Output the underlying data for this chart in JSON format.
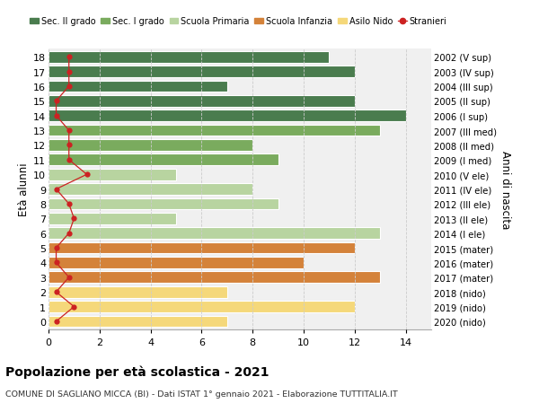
{
  "ages": [
    18,
    17,
    16,
    15,
    14,
    13,
    12,
    11,
    10,
    9,
    8,
    7,
    6,
    5,
    4,
    3,
    2,
    1,
    0
  ],
  "years": [
    "2002 (V sup)",
    "2003 (IV sup)",
    "2004 (III sup)",
    "2005 (II sup)",
    "2006 (I sup)",
    "2007 (III med)",
    "2008 (II med)",
    "2009 (I med)",
    "2010 (V ele)",
    "2011 (IV ele)",
    "2012 (III ele)",
    "2013 (II ele)",
    "2014 (I ele)",
    "2015 (mater)",
    "2016 (mater)",
    "2017 (mater)",
    "2018 (nido)",
    "2019 (nido)",
    "2020 (nido)"
  ],
  "bar_values": [
    11,
    12,
    7,
    12,
    14,
    13,
    8,
    9,
    5,
    8,
    9,
    5,
    13,
    12,
    10,
    13,
    7,
    12,
    7
  ],
  "bar_colors": [
    "#4a7c4e",
    "#4a7c4e",
    "#4a7c4e",
    "#4a7c4e",
    "#4a7c4e",
    "#7aab5e",
    "#7aab5e",
    "#7aab5e",
    "#b8d4a0",
    "#b8d4a0",
    "#b8d4a0",
    "#b8d4a0",
    "#b8d4a0",
    "#d4823a",
    "#d4823a",
    "#d4823a",
    "#f5d87a",
    "#f5d87a",
    "#f5d87a"
  ],
  "stranieri_x": [
    0.8,
    0.8,
    0.8,
    0.3,
    0.3,
    0.8,
    0.8,
    0.8,
    1.5,
    0.3,
    0.8,
    1.0,
    0.8,
    0.3,
    0.3,
    0.8,
    0.3,
    1.0,
    0.3
  ],
  "title": "Popolazione per età scolastica - 2021",
  "subtitle": "COMUNE DI SAGLIANO MICCA (BI) - Dati ISTAT 1° gennaio 2021 - Elaborazione TUTTITALIA.IT",
  "ylabel_left": "Età alunni",
  "ylabel_right": "Anni di nascita",
  "xlim": [
    0,
    15
  ],
  "color_sec2": "#4a7c4e",
  "color_sec1": "#7aab5e",
  "color_primaria": "#b8d4a0",
  "color_infanzia": "#d4823a",
  "color_nido": "#f5d87a",
  "color_stranieri": "#cc2222",
  "bg_color": "#ffffff",
  "plot_bg": "#f0f0f0",
  "bar_height": 0.78,
  "grid_color": "#cccccc",
  "legend_labels": [
    "Sec. II grado",
    "Sec. I grado",
    "Scuola Primaria",
    "Scuola Infanzia",
    "Asilo Nido",
    "Stranieri"
  ]
}
